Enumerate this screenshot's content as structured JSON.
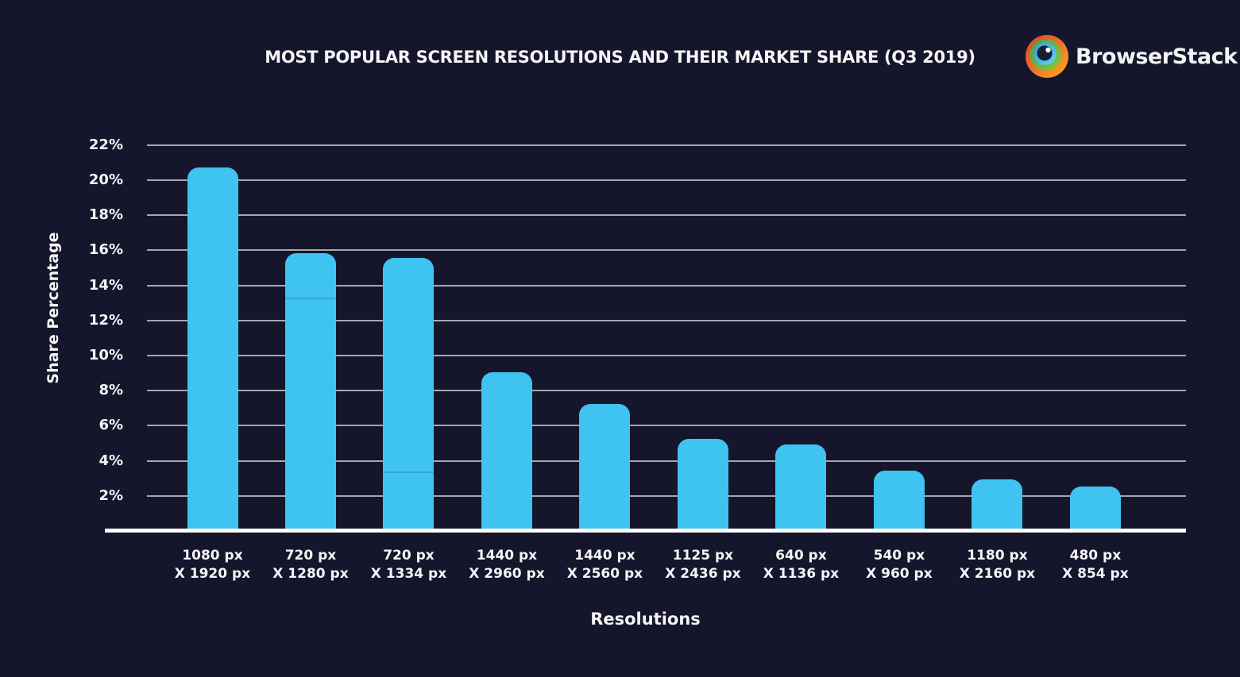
{
  "header": {
    "title": "MOST POPULAR SCREEN RESOLUTIONS AND THEIR MARKET SHARE (Q3 2019)",
    "logo_text": "BrowserStack"
  },
  "colors": {
    "background": "#15152B",
    "bar": "#3FC3F0",
    "bar_seam": "rgba(24, 100, 140, 0.30)",
    "grid": "rgba(255,255,255,0.62)",
    "baseline": "#FFFFFF",
    "text": "#F5F5F7",
    "logo_orange_dark": "#D7402B",
    "logo_orange": "#F1772B",
    "logo_orange_light": "#FBB216",
    "logo_green_dark": "#4E9E3D",
    "logo_green": "#8BC83F",
    "logo_blue_dark": "#2E9FD0",
    "logo_blue": "#66D0F2",
    "logo_pupil": "#191A33",
    "logo_highlight": "#FFFFFF"
  },
  "chart_data": {
    "type": "bar",
    "title": "MOST POPULAR SCREEN RESOLUTIONS AND THEIR MARKET SHARE (Q3 2019)",
    "xlabel": "Resolutions",
    "ylabel": "Share Percentage",
    "categories": [
      {
        "top": "1080 px",
        "bottom": "X 1920 px"
      },
      {
        "top": "720 px",
        "bottom": "X 1280 px"
      },
      {
        "top": "720 px",
        "bottom": "X 1334 px"
      },
      {
        "top": "1440 px",
        "bottom": "X 2960 px"
      },
      {
        "top": "1440 px",
        "bottom": "X 2560 px"
      },
      {
        "top": "1125 px",
        "bottom": "X 2436 px"
      },
      {
        "top": "640 px",
        "bottom": "X 1136 px"
      },
      {
        "top": "540 px",
        "bottom": "X 960 px"
      },
      {
        "top": "1180 px",
        "bottom": "X 2160 px"
      },
      {
        "top": "480 px",
        "bottom": "X 854 px"
      }
    ],
    "values": [
      20.7,
      15.8,
      15.5,
      9.0,
      7.2,
      5.2,
      4.9,
      3.4,
      2.9,
      2.5
    ],
    "segment_boundaries": [
      {
        "index": 1,
        "value": 13.2
      },
      {
        "index": 2,
        "value": 3.3
      }
    ],
    "yticks": [
      2,
      4,
      6,
      8,
      10,
      12,
      14,
      16,
      18,
      20,
      22
    ],
    "ytick_suffix": "%",
    "ylim": [
      0,
      22.6
    ],
    "grid": true,
    "legend": false,
    "bar_color": "#3FC3F0"
  }
}
